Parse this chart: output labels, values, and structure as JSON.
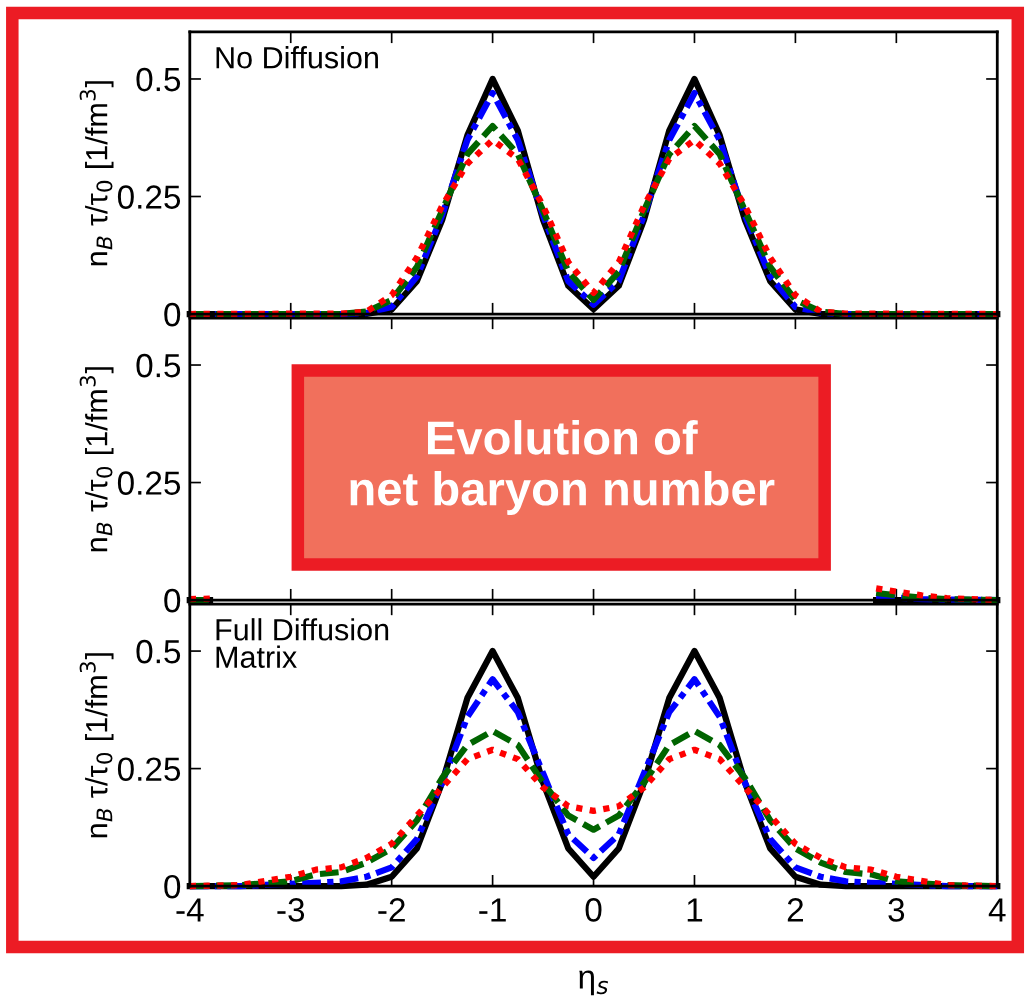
{
  "chart_data": [
    {
      "type": "line",
      "title": "No Diffusion",
      "ylabel": "n$_{B}$ τ/τ$_{0}$ [1/fm$^{3}$]",
      "xlim": [
        -4,
        4
      ],
      "xticks": [
        -4,
        -3,
        -2,
        -1,
        0,
        1,
        2,
        3,
        4
      ],
      "ylim": [
        0,
        0.6
      ],
      "yticks": [
        0,
        0.25,
        0.5
      ],
      "tick_labels": "y",
      "marker": "none",
      "grid": false,
      "legend": false,
      "x": [
        -4,
        -2.5,
        -2.25,
        -2,
        -1.75,
        -1.5,
        -1.25,
        -1,
        -0.75,
        -0.5,
        -0.25,
        0,
        0.25,
        0.5,
        0.75,
        1,
        1.25,
        1.5,
        1.75,
        2,
        2.25,
        2.5,
        4
      ],
      "series": [
        {
          "color": "#000000",
          "line_style": "solid",
          "values": [
            0,
            0,
            0,
            0.01,
            0.07,
            0.2,
            0.38,
            0.5,
            0.39,
            0.2,
            0.06,
            0.01,
            0.06,
            0.2,
            0.39,
            0.5,
            0.38,
            0.2,
            0.07,
            0.01,
            0,
            0,
            0
          ]
        },
        {
          "color": "#0000ff",
          "line_style": "dashdot",
          "values": [
            0,
            0,
            0.002,
            0.015,
            0.08,
            0.21,
            0.37,
            0.47,
            0.37,
            0.21,
            0.07,
            0.02,
            0.07,
            0.21,
            0.37,
            0.47,
            0.37,
            0.21,
            0.08,
            0.015,
            0.002,
            0,
            0
          ]
        },
        {
          "color": "#006400",
          "line_style": "dashed",
          "values": [
            0,
            0,
            0.005,
            0.03,
            0.1,
            0.22,
            0.34,
            0.4,
            0.34,
            0.22,
            0.09,
            0.03,
            0.09,
            0.22,
            0.34,
            0.4,
            0.34,
            0.22,
            0.1,
            0.03,
            0.005,
            0,
            0
          ]
        },
        {
          "color": "#ff0000",
          "line_style": "dotted",
          "values": [
            0,
            0.001,
            0.005,
            0.04,
            0.12,
            0.23,
            0.32,
            0.37,
            0.33,
            0.23,
            0.11,
            0.045,
            0.11,
            0.23,
            0.33,
            0.37,
            0.32,
            0.23,
            0.12,
            0.04,
            0.005,
            0.001,
            0
          ]
        }
      ]
    },
    {
      "type": "line",
      "ylabel": "n$_{B}$ τ/τ$_{0}$ [1/fm$^{3}$]",
      "xlim": [
        -4,
        4
      ],
      "xticks": [
        -4,
        -3,
        -2,
        -1,
        0,
        1,
        2,
        3,
        4
      ],
      "ylim": [
        0,
        0.6
      ],
      "yticks": [
        0,
        0.25,
        0.5
      ],
      "tick_labels": "y",
      "marker": "none",
      "grid": false,
      "legend": false,
      "annotations": [
        "Evolution of\nnet baryon number"
      ],
      "x": [
        -4,
        -3.8,
        0,
        2.8,
        3,
        3.25,
        3.5,
        4
      ],
      "series": [
        {
          "color": "#000000",
          "line_style": "solid",
          "values": [
            0,
            0,
            null,
            0,
            0,
            0,
            0,
            0
          ]
        },
        {
          "color": "#0000ff",
          "line_style": "dashdot",
          "values": [
            0,
            0,
            null,
            0.008,
            0.005,
            0.002,
            0.001,
            0
          ]
        },
        {
          "color": "#006400",
          "line_style": "dashed",
          "values": [
            0,
            0,
            null,
            0.015,
            0.01,
            0.005,
            0.002,
            0
          ]
        },
        {
          "color": "#ff0000",
          "line_style": "dotted",
          "values": [
            0.002,
            0.003,
            null,
            0.025,
            0.018,
            0.01,
            0.004,
            0
          ]
        }
      ]
    },
    {
      "type": "line",
      "title": "Full Diffusion\nMatrix",
      "xlabel": "η$_{s}$",
      "ylabel": "n$_{B}$ τ/τ$_{0}$ [1/fm$^{3}$]",
      "xlim": [
        -4,
        4
      ],
      "xticks": [
        -4,
        -3,
        -2,
        -1,
        0,
        1,
        2,
        3,
        4
      ],
      "ylim": [
        0,
        0.6
      ],
      "yticks": [
        0,
        0.25,
        0.5
      ],
      "marker": "none",
      "grid": false,
      "legend": false,
      "x": [
        -4,
        -3.5,
        -3,
        -2.75,
        -2.5,
        -2.25,
        -2,
        -1.75,
        -1.5,
        -1.25,
        -1,
        -0.75,
        -0.5,
        -0.25,
        0,
        0.25,
        0.5,
        0.75,
        1,
        1.25,
        1.5,
        1.75,
        2,
        2.25,
        2.5,
        2.75,
        3,
        3.5,
        4
      ],
      "series": [
        {
          "color": "#000000",
          "line_style": "solid",
          "values": [
            0,
            0,
            0,
            0,
            0,
            0.003,
            0.02,
            0.08,
            0.22,
            0.4,
            0.5,
            0.4,
            0.22,
            0.08,
            0.02,
            0.08,
            0.22,
            0.4,
            0.5,
            0.4,
            0.22,
            0.08,
            0.02,
            0.003,
            0,
            0,
            0,
            0,
            0
          ]
        },
        {
          "color": "#0000ff",
          "line_style": "dashdot",
          "values": [
            0,
            0,
            0.005,
            0.007,
            0.01,
            0.02,
            0.04,
            0.1,
            0.22,
            0.36,
            0.44,
            0.37,
            0.24,
            0.11,
            0.06,
            0.11,
            0.24,
            0.37,
            0.44,
            0.36,
            0.22,
            0.1,
            0.04,
            0.02,
            0.01,
            0.007,
            0.005,
            0,
            0
          ]
        },
        {
          "color": "#006400",
          "line_style": "dashed",
          "values": [
            0,
            0.002,
            0.01,
            0.025,
            0.03,
            0.05,
            0.08,
            0.14,
            0.23,
            0.3,
            0.33,
            0.3,
            0.22,
            0.15,
            0.12,
            0.15,
            0.22,
            0.3,
            0.33,
            0.3,
            0.23,
            0.14,
            0.08,
            0.05,
            0.03,
            0.025,
            0.01,
            0.002,
            0
          ]
        },
        {
          "color": "#ff0000",
          "line_style": "dotted",
          "values": [
            0,
            0.002,
            0.02,
            0.035,
            0.04,
            0.06,
            0.09,
            0.15,
            0.21,
            0.27,
            0.29,
            0.27,
            0.21,
            0.17,
            0.16,
            0.17,
            0.21,
            0.27,
            0.29,
            0.27,
            0.21,
            0.15,
            0.09,
            0.06,
            0.04,
            0.035,
            0.02,
            0.002,
            0
          ]
        }
      ]
    }
  ]
}
